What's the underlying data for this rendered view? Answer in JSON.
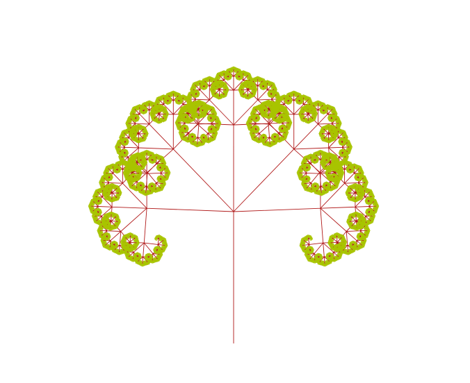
{
  "figure": {
    "subject": "pentagonal-tree-fractal",
    "background_color": "#ffffff",
    "branch_color": "#b01818",
    "leaf_color": "#a8c400",
    "branches_per_node": 5,
    "recursion_depth": 7
  }
}
